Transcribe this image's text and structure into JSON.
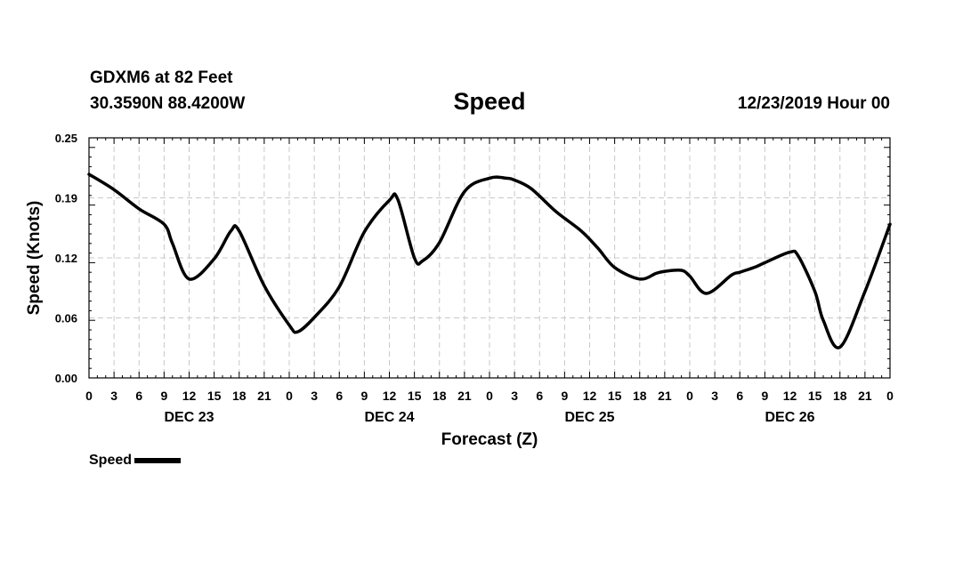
{
  "header": {
    "station": "GDXM6 at 82 Feet",
    "coords": "30.3590N 88.4200W",
    "title": "Speed",
    "issued": "12/23/2019 Hour 00"
  },
  "legend": {
    "label": "Speed"
  },
  "chart_data": {
    "type": "line",
    "title": "Speed",
    "xlabel": "Forecast (Z)",
    "ylabel": "Speed (Knots)",
    "ylim": [
      0,
      0.25
    ],
    "yticks": [
      "0.00",
      "0.06",
      "0.12",
      "0.19",
      "0.25"
    ],
    "xlim": [
      0,
      96
    ],
    "xticks": [
      "0",
      "3",
      "6",
      "9",
      "12",
      "15",
      "18",
      "21",
      "0",
      "3",
      "6",
      "9",
      "12",
      "15",
      "18",
      "21",
      "0",
      "3",
      "6",
      "9",
      "12",
      "15",
      "18",
      "21",
      "0",
      "3",
      "6",
      "9",
      "12",
      "15",
      "18",
      "21",
      "0"
    ],
    "day_labels": [
      {
        "text": "DEC 23",
        "hour": 12
      },
      {
        "text": "DEC 24",
        "hour": 36
      },
      {
        "text": "DEC 25",
        "hour": 60
      },
      {
        "text": "DEC 26",
        "hour": 84
      }
    ],
    "grid": true,
    "series": [
      {
        "name": "Speed",
        "color": "#000000",
        "x": [
          0,
          3,
          6,
          9,
          10,
          12,
          15,
          17,
          18,
          21,
          24,
          25,
          27,
          30,
          33,
          36,
          37,
          39,
          40,
          42,
          45,
          48,
          50,
          51,
          53,
          56,
          59,
          61,
          63,
          66,
          68,
          69,
          71,
          72,
          74,
          77,
          78,
          80,
          81,
          84,
          85,
          87,
          88,
          90,
          93,
          96
        ],
        "y": [
          0.212,
          0.196,
          0.176,
          0.16,
          0.14,
          0.103,
          0.124,
          0.153,
          0.153,
          0.096,
          0.055,
          0.048,
          0.063,
          0.095,
          0.152,
          0.185,
          0.186,
          0.125,
          0.122,
          0.141,
          0.194,
          0.208,
          0.208,
          0.206,
          0.197,
          0.173,
          0.153,
          0.135,
          0.115,
          0.103,
          0.109,
          0.111,
          0.112,
          0.106,
          0.088,
          0.107,
          0.11,
          0.116,
          0.12,
          0.131,
          0.127,
          0.09,
          0.06,
          0.032,
          0.09,
          0.16
        ]
      }
    ]
  }
}
